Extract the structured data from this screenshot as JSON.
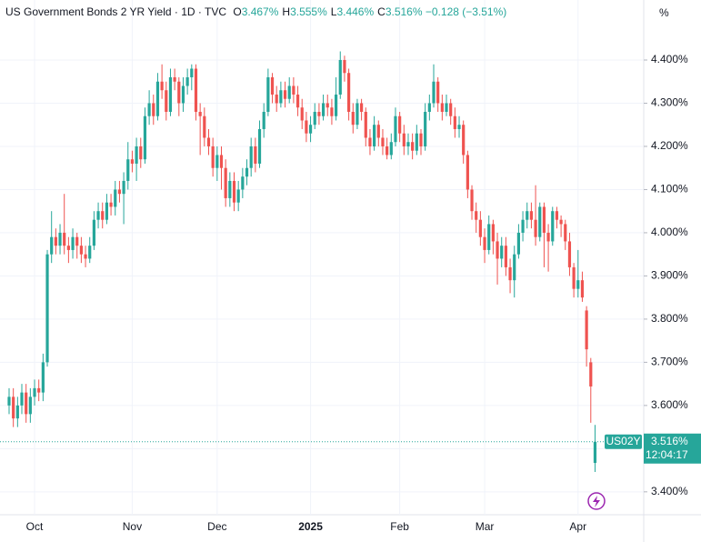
{
  "chart_data": {
    "type": "candlestick",
    "legend": {
      "title": "US Government Bonds 2 YR Yield · 1D · TVC",
      "items": [
        {
          "key": "O",
          "text": "3.467%"
        },
        {
          "key": "H",
          "text": "3.555%"
        },
        {
          "key": "L",
          "text": "3.446%"
        },
        {
          "key": "C",
          "text": "3.516%"
        }
      ],
      "change": "−0.128 (−3.51%)"
    },
    "y_unit": "%",
    "symbol": "US02Y",
    "last_price": {
      "value": 3.516,
      "label": "3.516%"
    },
    "countdown": "12:04:17",
    "up_color": "#26a69a",
    "down_color": "#ef5350",
    "grid": true,
    "ylim": [
      3.347,
      4.539
    ],
    "yticks": [
      {
        "value": 3.4,
        "label": "3.400%"
      },
      {
        "value": 3.5,
        "label": "3.500%"
      },
      {
        "value": 3.6,
        "label": "3.600%"
      },
      {
        "value": 3.7,
        "label": "3.700%"
      },
      {
        "value": 3.8,
        "label": "3.800%"
      },
      {
        "value": 3.9,
        "label": "3.900%"
      },
      {
        "value": 4.0,
        "label": "4.000%"
      },
      {
        "value": 4.1,
        "label": "4.100%"
      },
      {
        "value": 4.2,
        "label": "4.200%"
      },
      {
        "value": 4.3,
        "label": "4.300%"
      },
      {
        "value": 4.4,
        "label": "4.400%"
      }
    ],
    "categories": [
      null,
      null,
      null,
      null,
      null,
      null,
      "Oct",
      null,
      null,
      null,
      null,
      null,
      null,
      null,
      null,
      null,
      null,
      null,
      null,
      null,
      null,
      null,
      null,
      null,
      null,
      null,
      null,
      null,
      null,
      "Nov",
      null,
      null,
      null,
      null,
      null,
      null,
      null,
      null,
      null,
      null,
      null,
      null,
      null,
      null,
      null,
      null,
      null,
      null,
      null,
      "Dec",
      null,
      null,
      null,
      null,
      null,
      null,
      null,
      null,
      null,
      null,
      null,
      null,
      null,
      null,
      null,
      null,
      null,
      null,
      null,
      null,
      null,
      "2025",
      null,
      null,
      null,
      null,
      null,
      null,
      null,
      null,
      null,
      null,
      null,
      null,
      null,
      null,
      null,
      null,
      null,
      null,
      null,
      null,
      "Feb",
      null,
      null,
      null,
      null,
      null,
      null,
      null,
      null,
      null,
      null,
      null,
      null,
      null,
      null,
      null,
      null,
      null,
      null,
      null,
      "Mar",
      null,
      null,
      null,
      null,
      null,
      null,
      null,
      null,
      null,
      null,
      null,
      null,
      null,
      null,
      null,
      null,
      null,
      null,
      null,
      null,
      null,
      "Apr",
      null,
      null,
      null,
      null
    ],
    "open": [
      3.6,
      3.62,
      3.57,
      3.6,
      3.63,
      3.58,
      3.62,
      3.64,
      3.63,
      3.7,
      3.95,
      3.99,
      3.97,
      4.0,
      3.97,
      3.96,
      3.99,
      3.97,
      3.95,
      3.94,
      3.97,
      4.03,
      4.05,
      4.03,
      4.07,
      4.06,
      4.1,
      4.09,
      4.12,
      4.17,
      4.16,
      4.2,
      4.17,
      4.27,
      4.3,
      4.27,
      4.35,
      4.33,
      4.28,
      4.36,
      4.35,
      4.3,
      4.34,
      4.36,
      4.38,
      4.28,
      4.27,
      4.22,
      4.2,
      4.15,
      4.18,
      4.15,
      4.08,
      4.12,
      4.07,
      4.1,
      4.13,
      4.15,
      4.2,
      4.16,
      4.24,
      4.28,
      4.36,
      4.32,
      4.3,
      4.33,
      4.31,
      4.34,
      4.32,
      4.29,
      4.26,
      4.23,
      4.25,
      4.28,
      4.27,
      4.3,
      4.29,
      4.27,
      4.32,
      4.4,
      4.37,
      4.28,
      4.25,
      4.3,
      4.28,
      4.22,
      4.2,
      4.25,
      4.22,
      4.2,
      4.18,
      4.21,
      4.27,
      4.23,
      4.2,
      4.21,
      4.19,
      4.23,
      4.2,
      4.28,
      4.3,
      4.35,
      4.3,
      4.28,
      4.3,
      4.27,
      4.24,
      4.25,
      4.18,
      4.1,
      4.05,
      4.03,
      3.99,
      3.96,
      4.02,
      3.98,
      3.94,
      3.97,
      3.92,
      3.89,
      3.95,
      4.0,
      4.03,
      4.05,
      4.03,
      3.99,
      4.06,
      4.0,
      3.98,
      4.05,
      4.03,
      4.02,
      3.98,
      3.92,
      3.87,
      3.89,
      3.82,
      3.7,
      3.467
    ],
    "high": [
      3.64,
      3.64,
      3.62,
      3.65,
      3.65,
      3.64,
      3.66,
      3.66,
      3.72,
      3.96,
      4.05,
      4.01,
      4.02,
      4.09,
      3.99,
      4.01,
      4.0,
      3.99,
      3.97,
      3.99,
      4.05,
      4.07,
      4.07,
      4.09,
      4.09,
      4.12,
      4.12,
      4.14,
      4.21,
      4.19,
      4.22,
      4.22,
      4.29,
      4.33,
      4.32,
      4.37,
      4.39,
      4.35,
      4.38,
      4.38,
      4.36,
      4.36,
      4.38,
      4.39,
      4.39,
      4.3,
      4.29,
      4.24,
      4.22,
      4.2,
      4.2,
      4.17,
      4.14,
      4.14,
      4.12,
      4.15,
      4.17,
      4.22,
      4.22,
      4.26,
      4.3,
      4.38,
      4.37,
      4.34,
      4.35,
      4.35,
      4.36,
      4.36,
      4.34,
      4.31,
      4.28,
      4.27,
      4.3,
      4.3,
      4.32,
      4.32,
      4.31,
      4.36,
      4.42,
      4.41,
      4.38,
      4.3,
      4.31,
      4.31,
      4.29,
      4.24,
      4.27,
      4.26,
      4.24,
      4.22,
      4.23,
      4.29,
      4.28,
      4.25,
      4.23,
      4.23,
      4.25,
      4.24,
      4.3,
      4.32,
      4.39,
      4.36,
      4.32,
      4.32,
      4.31,
      4.29,
      4.27,
      4.26,
      4.19,
      4.11,
      4.07,
      4.05,
      4.01,
      4.04,
      4.03,
      4.0,
      3.99,
      3.99,
      3.94,
      3.97,
      4.02,
      4.05,
      4.07,
      4.07,
      4.11,
      4.07,
      4.07,
      4.02,
      4.06,
      4.06,
      4.04,
      4.03,
      4.0,
      3.93,
      3.96,
      3.91,
      3.83,
      3.71,
      3.555
    ],
    "low": [
      3.58,
      3.55,
      3.55,
      3.58,
      3.56,
      3.56,
      3.6,
      3.61,
      3.61,
      3.69,
      3.93,
      3.95,
      3.95,
      3.95,
      3.93,
      3.94,
      3.94,
      3.93,
      3.92,
      3.93,
      3.96,
      4.01,
      4.01,
      4.02,
      4.04,
      4.04,
      4.07,
      4.02,
      4.1,
      4.14,
      4.12,
      4.15,
      4.16,
      4.25,
      4.25,
      4.26,
      4.31,
      4.26,
      4.27,
      4.33,
      4.27,
      4.28,
      4.32,
      4.33,
      4.26,
      4.18,
      4.2,
      4.18,
      4.13,
      4.12,
      4.1,
      4.06,
      4.06,
      4.05,
      4.05,
      4.08,
      4.11,
      4.13,
      4.14,
      4.15,
      4.22,
      4.27,
      4.3,
      4.28,
      4.29,
      4.29,
      4.3,
      4.3,
      4.27,
      4.24,
      4.21,
      4.21,
      4.24,
      4.25,
      4.26,
      4.27,
      4.25,
      4.26,
      4.31,
      4.35,
      4.26,
      4.23,
      4.24,
      4.26,
      4.2,
      4.18,
      4.19,
      4.2,
      4.18,
      4.17,
      4.17,
      4.2,
      4.21,
      4.18,
      4.18,
      4.17,
      4.18,
      4.18,
      4.19,
      4.26,
      4.29,
      4.28,
      4.26,
      4.27,
      4.25,
      4.22,
      4.22,
      4.16,
      4.08,
      4.03,
      4.0,
      3.97,
      3.93,
      3.95,
      3.95,
      3.88,
      3.92,
      3.9,
      3.86,
      3.85,
      3.94,
      3.98,
      4.01,
      4.01,
      3.97,
      3.98,
      3.92,
      3.91,
      3.97,
      4.01,
      3.99,
      3.96,
      3.9,
      3.85,
      3.85,
      3.84,
      3.69,
      3.56,
      3.446
    ],
    "close": [
      3.62,
      3.57,
      3.6,
      3.63,
      3.58,
      3.62,
      3.64,
      3.63,
      3.7,
      3.95,
      3.99,
      3.97,
      4.0,
      3.97,
      3.96,
      3.99,
      3.97,
      3.95,
      3.94,
      3.97,
      4.03,
      4.05,
      4.03,
      4.07,
      4.06,
      4.1,
      4.09,
      4.12,
      4.17,
      4.16,
      4.2,
      4.17,
      4.27,
      4.3,
      4.27,
      4.35,
      4.33,
      4.28,
      4.36,
      4.35,
      4.3,
      4.34,
      4.36,
      4.38,
      4.28,
      4.27,
      4.22,
      4.2,
      4.15,
      4.18,
      4.15,
      4.08,
      4.12,
      4.07,
      4.1,
      4.13,
      4.15,
      4.2,
      4.16,
      4.24,
      4.28,
      4.36,
      4.32,
      4.3,
      4.33,
      4.31,
      4.34,
      4.32,
      4.29,
      4.26,
      4.23,
      4.25,
      4.28,
      4.27,
      4.3,
      4.29,
      4.27,
      4.32,
      4.4,
      4.37,
      4.28,
      4.25,
      4.3,
      4.28,
      4.22,
      4.2,
      4.25,
      4.22,
      4.2,
      4.18,
      4.21,
      4.27,
      4.23,
      4.2,
      4.21,
      4.19,
      4.23,
      4.2,
      4.28,
      4.3,
      4.35,
      4.3,
      4.28,
      4.3,
      4.27,
      4.24,
      4.25,
      4.18,
      4.1,
      4.05,
      4.03,
      3.99,
      3.96,
      4.02,
      3.98,
      3.94,
      3.97,
      3.92,
      3.89,
      3.95,
      4.0,
      4.03,
      4.05,
      4.03,
      3.99,
      4.06,
      4.0,
      3.98,
      4.05,
      4.03,
      4.02,
      3.98,
      3.92,
      3.87,
      3.89,
      3.85,
      3.73,
      3.644,
      3.516
    ]
  }
}
